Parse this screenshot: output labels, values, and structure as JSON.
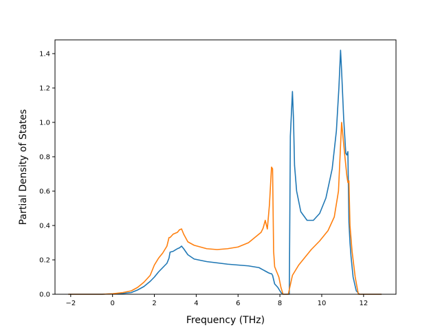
{
  "chart_data": {
    "type": "line",
    "title": "",
    "xlabel": "Frequency (THz)",
    "ylabel": "Partial Density of States",
    "xlim": [
      -2.75,
      13.55
    ],
    "ylim": [
      0.0,
      1.48
    ],
    "xticks": [
      -2,
      0,
      2,
      4,
      6,
      8,
      10,
      12
    ],
    "xtick_labels": [
      "−2",
      "0",
      "2",
      "4",
      "6",
      "8",
      "10",
      "12"
    ],
    "yticks": [
      0.0,
      0.2,
      0.4,
      0.6,
      0.8,
      1.0,
      1.2,
      1.4
    ],
    "ytick_labels": [
      "0.0",
      "0.2",
      "0.4",
      "0.6",
      "0.8",
      "1.0",
      "1.2",
      "1.4"
    ],
    "grid": false,
    "legend": "none",
    "series": [
      {
        "color": "#1f77b4",
        "x": [
          -2.1,
          -0.5,
          0.0,
          0.5,
          0.9,
          1.2,
          1.5,
          1.8,
          2.0,
          2.2,
          2.4,
          2.6,
          2.7,
          2.75,
          2.9,
          3.1,
          3.2,
          3.3,
          3.4,
          3.6,
          3.9,
          4.5,
          5.5,
          6.5,
          7.0,
          7.3,
          7.45,
          7.55,
          7.6,
          7.65,
          7.75,
          7.9,
          8.05,
          8.15,
          8.35,
          8.45,
          8.5,
          8.55,
          8.6,
          8.65,
          8.7,
          8.8,
          9.0,
          9.3,
          9.6,
          9.9,
          10.2,
          10.5,
          10.7,
          10.82,
          10.9,
          10.95,
          11.05,
          11.15,
          11.2,
          11.25,
          11.3,
          11.35,
          11.4,
          11.5,
          11.65,
          11.8,
          12.3,
          12.85
        ],
        "y": [
          0.0,
          0.0,
          0.003,
          0.005,
          0.01,
          0.025,
          0.045,
          0.075,
          0.1,
          0.13,
          0.155,
          0.18,
          0.21,
          0.245,
          0.25,
          0.265,
          0.27,
          0.28,
          0.265,
          0.23,
          0.205,
          0.19,
          0.175,
          0.165,
          0.155,
          0.135,
          0.125,
          0.12,
          0.12,
          0.11,
          0.06,
          0.04,
          0.01,
          0.0,
          0.0,
          0.0,
          0.92,
          1.05,
          1.18,
          1.02,
          0.75,
          0.6,
          0.48,
          0.43,
          0.43,
          0.47,
          0.56,
          0.73,
          0.95,
          1.2,
          1.42,
          1.3,
          1.02,
          0.82,
          0.81,
          0.83,
          0.42,
          0.3,
          0.22,
          0.1,
          0.02,
          0.0,
          0.0,
          0.0
        ]
      },
      {
        "color": "#ff7f0e",
        "x": [
          -2.1,
          -0.5,
          0.0,
          0.5,
          0.9,
          1.2,
          1.5,
          1.8,
          2.0,
          2.2,
          2.4,
          2.6,
          2.7,
          2.75,
          2.9,
          3.1,
          3.2,
          3.3,
          3.4,
          3.6,
          3.9,
          4.5,
          5.0,
          5.5,
          6.0,
          6.5,
          6.9,
          7.1,
          7.2,
          7.3,
          7.4,
          7.5,
          7.6,
          7.65,
          7.7,
          7.75,
          7.85,
          7.95,
          8.05,
          8.15,
          8.4,
          8.6,
          8.7,
          8.9,
          9.2,
          9.5,
          9.9,
          10.3,
          10.6,
          10.8,
          10.95,
          11.1,
          11.2,
          11.25,
          11.3,
          11.35,
          11.45,
          11.6,
          11.75,
          12.3,
          12.85
        ],
        "y": [
          0.0,
          0.0,
          0.003,
          0.01,
          0.02,
          0.04,
          0.07,
          0.11,
          0.17,
          0.21,
          0.24,
          0.28,
          0.33,
          0.33,
          0.35,
          0.36,
          0.375,
          0.38,
          0.35,
          0.305,
          0.285,
          0.265,
          0.26,
          0.265,
          0.275,
          0.3,
          0.34,
          0.36,
          0.385,
          0.43,
          0.38,
          0.52,
          0.74,
          0.73,
          0.25,
          0.16,
          0.13,
          0.1,
          0.04,
          0.0,
          0.0,
          0.11,
          0.13,
          0.17,
          0.215,
          0.26,
          0.31,
          0.37,
          0.45,
          0.6,
          1.0,
          0.81,
          0.69,
          0.65,
          0.66,
          0.4,
          0.25,
          0.1,
          0.0,
          0.0,
          0.0
        ]
      }
    ]
  }
}
